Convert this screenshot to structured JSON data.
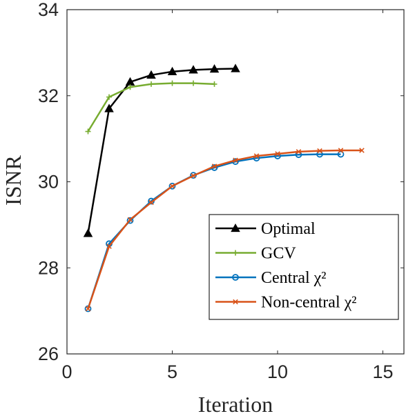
{
  "chart_data": {
    "type": "line",
    "title": "",
    "xlabel": "Iteration",
    "ylabel": "ISNR",
    "xlim": [
      0,
      16
    ],
    "ylim": [
      26,
      34
    ],
    "xticks": [
      0,
      5,
      10,
      15
    ],
    "yticks": [
      26,
      28,
      30,
      32,
      34
    ],
    "grid": false,
    "legend_position": "bottom-right",
    "series": [
      {
        "name": "Optimal",
        "color": "#000000",
        "marker": "triangle",
        "x": [
          1,
          2,
          3,
          4,
          5,
          6,
          7,
          8
        ],
        "y": [
          28.8,
          31.7,
          32.32,
          32.48,
          32.56,
          32.6,
          32.62,
          32.63
        ]
      },
      {
        "name": "GCV",
        "color": "#77AC30",
        "marker": "plus",
        "x": [
          1,
          2,
          3,
          4,
          5,
          6,
          7
        ],
        "y": [
          31.17,
          31.97,
          32.2,
          32.27,
          32.29,
          32.29,
          32.27
        ]
      },
      {
        "name": "Central χ²",
        "color": "#0072BD",
        "marker": "circle",
        "x": [
          1,
          2,
          3,
          4,
          5,
          6,
          7,
          8,
          9,
          10,
          11,
          12,
          13
        ],
        "y": [
          27.05,
          28.56,
          29.1,
          29.55,
          29.9,
          30.15,
          30.33,
          30.47,
          30.55,
          30.6,
          30.63,
          30.64,
          30.64
        ]
      },
      {
        "name": "Non-central χ²",
        "color": "#D95319",
        "marker": "x",
        "x": [
          1,
          2,
          3,
          4,
          5,
          6,
          7,
          8,
          9,
          10,
          11,
          12,
          13,
          14
        ],
        "y": [
          27.05,
          28.5,
          29.12,
          29.52,
          29.9,
          30.14,
          30.36,
          30.5,
          30.6,
          30.65,
          30.7,
          30.72,
          30.73,
          30.73
        ]
      }
    ]
  }
}
